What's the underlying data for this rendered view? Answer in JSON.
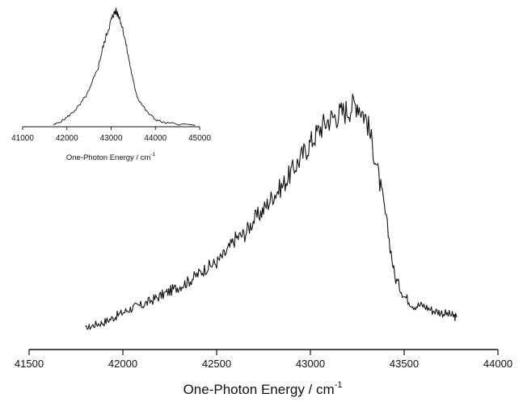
{
  "chart_data": [
    {
      "type": "line",
      "role": "main",
      "xlabel_main": "One-Photon Energy / cm",
      "xlabel_sup": "-1",
      "xlim": [
        41500,
        44000
      ],
      "ylim": [
        0,
        1.0
      ],
      "xticks": [
        "41500",
        "42000",
        "42500",
        "43000",
        "43500",
        "44000"
      ],
      "xtick_values": [
        41500,
        42000,
        42500,
        43000,
        43500,
        44000
      ],
      "line_color": "#111111",
      "series": [
        {
          "x": [
            41800,
            41850,
            41900,
            41950,
            42000,
            42050,
            42100,
            42150,
            42200,
            42250,
            42300,
            42350,
            42400,
            42450,
            42500,
            42550,
            42600,
            42650,
            42700,
            42750,
            42800,
            42850,
            42900,
            42950,
            43000,
            43050,
            43100,
            43150,
            43200,
            43250,
            43300,
            43350,
            43400,
            43450,
            43500,
            43550,
            43600,
            43650,
            43700,
            43750,
            43780
          ],
          "y": [
            0.0,
            0.02,
            0.03,
            0.05,
            0.07,
            0.09,
            0.1,
            0.12,
            0.14,
            0.16,
            0.18,
            0.2,
            0.23,
            0.26,
            0.28,
            0.32,
            0.38,
            0.4,
            0.46,
            0.5,
            0.56,
            0.6,
            0.66,
            0.72,
            0.78,
            0.84,
            0.88,
            0.9,
            0.92,
            0.95,
            0.88,
            0.7,
            0.48,
            0.22,
            0.14,
            0.1,
            0.1,
            0.08,
            0.07,
            0.06,
            0.05
          ]
        }
      ]
    },
    {
      "type": "line",
      "role": "inset",
      "xlabel_main": "One-Photon Energy / cm",
      "xlabel_sup": "-1",
      "xlim": [
        41000,
        45000
      ],
      "ylim": [
        0,
        1.0
      ],
      "xticks": [
        "41000",
        "42000",
        "43000",
        "44000",
        "45000"
      ],
      "xtick_values": [
        41000,
        42000,
        43000,
        44000,
        45000
      ],
      "line_color": "#111111",
      "series": [
        {
          "x": [
            41700,
            41900,
            42100,
            42300,
            42500,
            42700,
            42800,
            42900,
            43000,
            43050,
            43100,
            43150,
            43200,
            43300,
            43400,
            43500,
            43600,
            43800,
            44000,
            44200,
            44500,
            44900
          ],
          "y": [
            0.0,
            0.04,
            0.1,
            0.18,
            0.3,
            0.5,
            0.66,
            0.8,
            0.92,
            0.97,
            1.0,
            0.98,
            0.94,
            0.78,
            0.58,
            0.38,
            0.24,
            0.12,
            0.05,
            0.02,
            0.01,
            0.0
          ]
        }
      ]
    }
  ]
}
